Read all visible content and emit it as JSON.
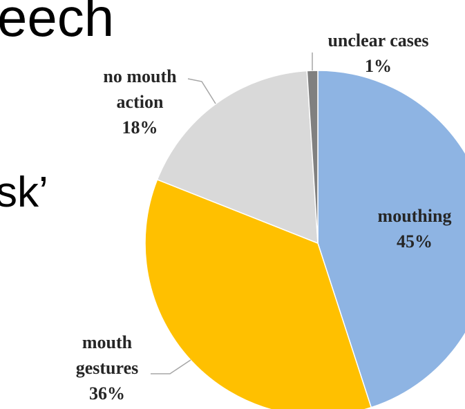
{
  "slide_text": [
    "eech",
    "sk’"
  ],
  "chart_data": {
    "type": "pie",
    "categories": [
      "mouthing",
      "mouth gestures",
      "no mouth action",
      "unclear cases"
    ],
    "values": [
      45,
      36,
      18,
      1
    ],
    "value_labels": [
      "45%",
      "36%",
      "18%",
      "1%"
    ],
    "colors": [
      "#8eb4e3",
      "#ffc000",
      "#d9d9d9",
      "#808080"
    ]
  }
}
